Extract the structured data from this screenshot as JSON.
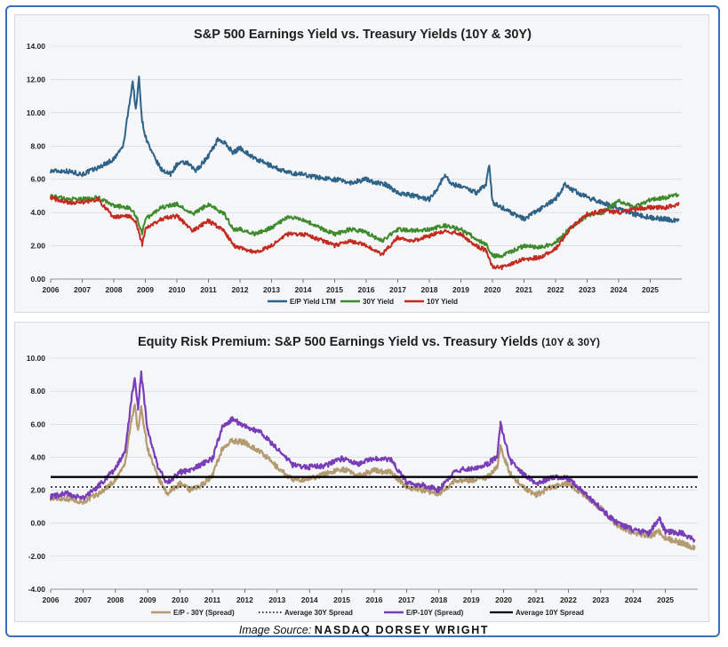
{
  "source": {
    "prefix": "Image Source:",
    "brand": "NASDAQ DORSEY WRIGHT"
  },
  "colors": {
    "ep": "#2f6287",
    "y30": "#3f8a2c",
    "y10": "#c42a20",
    "spread30": "#b49a70",
    "spread10": "#7a3db8",
    "avg30": "#222222",
    "avg10": "#000000"
  },
  "chart_data": [
    {
      "type": "line",
      "title": "S&P 500 Earnings Yield vs. Treasury Yields (10Y & 30Y)",
      "xlabel": "",
      "ylabel": "",
      "xlim": [
        2006,
        2026
      ],
      "ylim": [
        0,
        14
      ],
      "x_ticks": [
        "2006",
        "2007",
        "2008",
        "2009",
        "2010",
        "2011",
        "2012",
        "2013",
        "2014",
        "2015",
        "2016",
        "2017",
        "2018",
        "2019",
        "2020",
        "2021",
        "2022",
        "2023",
        "2024",
        "2025"
      ],
      "y_ticks": [
        "0.00",
        "2.00",
        "4.00",
        "6.00",
        "8.00",
        "10.00",
        "12.00",
        "14.00"
      ],
      "grid": true,
      "legend": "bottom",
      "series": [
        {
          "name": "E/P Yield LTM",
          "x": [
            2006,
            2006.5,
            2007,
            2007.5,
            2008,
            2008.3,
            2008.5,
            2008.6,
            2008.7,
            2008.8,
            2008.9,
            2009.0,
            2009.2,
            2009.5,
            2009.8,
            2010,
            2010.3,
            2010.6,
            2011,
            2011.3,
            2011.5,
            2011.8,
            2012,
            2012.5,
            2013,
            2013.5,
            2014,
            2014.5,
            2015,
            2015.5,
            2016,
            2016.3,
            2016.6,
            2017,
            2017.5,
            2018,
            2018.3,
            2018.5,
            2018.7,
            2019,
            2019.5,
            2019.8,
            2019.9,
            2020,
            2020.3,
            2020.6,
            2021,
            2021.5,
            2022,
            2022.3,
            2022.5,
            2023,
            2023.5,
            2024,
            2024.5,
            2025,
            2025.5,
            2025.9
          ],
          "y": [
            6.5,
            6.5,
            6.3,
            6.7,
            7.2,
            8.0,
            10.6,
            11.9,
            10.2,
            12.1,
            9.5,
            8.6,
            7.6,
            6.6,
            6.3,
            6.9,
            7.0,
            6.5,
            7.4,
            8.4,
            8.2,
            7.6,
            7.9,
            7.2,
            6.8,
            6.4,
            6.3,
            6.1,
            6.0,
            5.8,
            6.0,
            5.8,
            5.7,
            5.2,
            5.0,
            4.8,
            5.6,
            6.3,
            5.7,
            5.6,
            5.2,
            5.7,
            6.9,
            4.6,
            4.3,
            4.0,
            3.6,
            4.2,
            4.8,
            5.7,
            5.4,
            4.9,
            4.6,
            4.2,
            3.9,
            3.7,
            3.6,
            3.5
          ]
        },
        {
          "name": "30Y Yield",
          "x": [
            2006,
            2006.5,
            2007,
            2007.5,
            2008,
            2008.5,
            2008.7,
            2008.9,
            2009,
            2009.5,
            2010,
            2010.5,
            2011,
            2011.5,
            2011.8,
            2012,
            2012.5,
            2013,
            2013.5,
            2014,
            2014.5,
            2015,
            2015.5,
            2016,
            2016.5,
            2017,
            2017.5,
            2018,
            2018.5,
            2019,
            2019.5,
            2019.8,
            2020,
            2020.3,
            2021,
            2021.5,
            2022,
            2022.5,
            2023,
            2023.5,
            2024,
            2024.5,
            2025,
            2025.5,
            2025.9
          ],
          "y": [
            5.0,
            4.8,
            4.8,
            4.9,
            4.4,
            4.3,
            3.8,
            2.8,
            3.6,
            4.3,
            4.5,
            3.9,
            4.5,
            3.9,
            3.0,
            3.0,
            2.7,
            3.1,
            3.7,
            3.6,
            3.1,
            2.7,
            3.0,
            2.8,
            2.3,
            3.0,
            2.9,
            3.0,
            3.2,
            3.0,
            2.4,
            2.1,
            1.4,
            1.4,
            2.0,
            1.9,
            2.2,
            3.1,
            3.8,
            4.0,
            4.7,
            4.3,
            4.8,
            4.9,
            5.1
          ]
        },
        {
          "name": "10Y Yield",
          "x": [
            2006,
            2006.5,
            2007,
            2007.5,
            2008,
            2008.5,
            2008.7,
            2008.9,
            2009,
            2009.5,
            2010,
            2010.5,
            2011,
            2011.5,
            2011.8,
            2012,
            2012.5,
            2013,
            2013.5,
            2014,
            2014.5,
            2015,
            2015.5,
            2016,
            2016.5,
            2017,
            2017.5,
            2018,
            2018.5,
            2019,
            2019.5,
            2019.8,
            2020,
            2020.3,
            2021,
            2021.5,
            2022,
            2022.5,
            2023,
            2023.5,
            2024,
            2024.5,
            2025,
            2025.5,
            2025.9
          ],
          "y": [
            4.9,
            4.6,
            4.6,
            4.8,
            3.7,
            3.8,
            3.4,
            2.1,
            3.0,
            3.6,
            3.8,
            2.9,
            3.5,
            2.9,
            2.0,
            1.9,
            1.6,
            2.0,
            2.7,
            2.7,
            2.4,
            2.0,
            2.3,
            2.0,
            1.5,
            2.5,
            2.3,
            2.6,
            2.9,
            2.7,
            2.0,
            1.7,
            0.7,
            0.7,
            1.2,
            1.3,
            1.8,
            3.1,
            3.9,
            4.1,
            4.0,
            4.2,
            4.3,
            4.3,
            4.5
          ]
        }
      ]
    },
    {
      "type": "line",
      "title": "Equity Risk Premium: S&P 500 Earnings Yield vs. Treasury Yields",
      "title_suffix": "(10Y & 30Y)",
      "xlabel": "",
      "ylabel": "",
      "xlim": [
        2006,
        2026
      ],
      "ylim": [
        -4,
        10
      ],
      "x_ticks": [
        "2006",
        "2007",
        "2008",
        "2009",
        "2010",
        "2011",
        "2012",
        "2013",
        "2014",
        "2015",
        "2016",
        "2017",
        "2018",
        "2019",
        "2020",
        "2021",
        "2022",
        "2023",
        "2024",
        "2025"
      ],
      "y_ticks": [
        "-4.00",
        "-2.00",
        "0.00",
        "2.00",
        "4.00",
        "6.00",
        "8.00",
        "10.00"
      ],
      "grid": true,
      "legend": "bottom",
      "series": [
        {
          "name": "E/P - 30Y (Spread)",
          "x": [
            2006,
            2006.5,
            2007,
            2007.5,
            2008,
            2008.3,
            2008.5,
            2008.6,
            2008.7,
            2008.8,
            2009,
            2009.3,
            2009.6,
            2010,
            2010.3,
            2010.6,
            2011,
            2011.3,
            2011.6,
            2012,
            2012.5,
            2013,
            2013.5,
            2014,
            2014.5,
            2015,
            2015.5,
            2016,
            2016.5,
            2017,
            2017.5,
            2018,
            2018.5,
            2019,
            2019.5,
            2019.8,
            2019.9,
            2020.2,
            2020.6,
            2021,
            2021.5,
            2022,
            2022.5,
            2023,
            2023.5,
            2024,
            2024.5,
            2024.8,
            2025,
            2025.5,
            2025.9
          ],
          "y": [
            1.5,
            1.5,
            1.3,
            1.8,
            2.6,
            3.6,
            6.3,
            7.2,
            5.6,
            7.0,
            4.5,
            2.8,
            1.8,
            2.4,
            2.0,
            2.2,
            2.9,
            4.5,
            5.0,
            4.9,
            4.3,
            3.4,
            2.6,
            2.7,
            3.0,
            3.3,
            2.9,
            3.2,
            3.1,
            2.2,
            2.0,
            1.8,
            2.6,
            2.6,
            2.8,
            3.4,
            4.6,
            3.0,
            2.2,
            1.7,
            2.2,
            2.4,
            1.7,
            0.9,
            -0.1,
            -0.6,
            -0.8,
            -0.5,
            -0.9,
            -1.2,
            -1.5
          ]
        },
        {
          "name": "Average 30Y Spread",
          "x": [
            2006,
            2026
          ],
          "y": [
            2.2,
            2.2
          ]
        },
        {
          "name": "E/P-10Y (Spread)",
          "x": [
            2006,
            2006.5,
            2007,
            2007.5,
            2008,
            2008.3,
            2008.5,
            2008.6,
            2008.7,
            2008.8,
            2009,
            2009.3,
            2009.6,
            2010,
            2010.3,
            2010.6,
            2011,
            2011.3,
            2011.6,
            2012,
            2012.5,
            2013,
            2013.5,
            2014,
            2014.5,
            2015,
            2015.5,
            2016,
            2016.5,
            2017,
            2017.5,
            2018,
            2018.5,
            2019,
            2019.5,
            2019.8,
            2019.9,
            2020.2,
            2020.6,
            2021,
            2021.5,
            2022,
            2022.5,
            2023,
            2023.5,
            2024,
            2024.5,
            2024.8,
            2025,
            2025.5,
            2025.9
          ],
          "y": [
            1.6,
            1.8,
            1.5,
            2.3,
            3.3,
            4.3,
            7.6,
            8.8,
            6.9,
            9.1,
            5.6,
            3.5,
            2.4,
            3.1,
            3.2,
            3.5,
            3.9,
            5.8,
            6.3,
            5.9,
            5.5,
            4.5,
            3.5,
            3.4,
            3.5,
            3.9,
            3.6,
            3.9,
            3.9,
            2.5,
            2.3,
            2.0,
            3.2,
            3.3,
            3.6,
            4.0,
            6.0,
            3.8,
            3.0,
            2.4,
            2.8,
            2.7,
            1.8,
            0.9,
            0.0,
            -0.4,
            -0.6,
            0.3,
            -0.5,
            -0.6,
            -1.0
          ]
        },
        {
          "name": "Average 10Y Spread",
          "x": [
            2006,
            2026
          ],
          "y": [
            2.8,
            2.8
          ]
        }
      ]
    }
  ]
}
